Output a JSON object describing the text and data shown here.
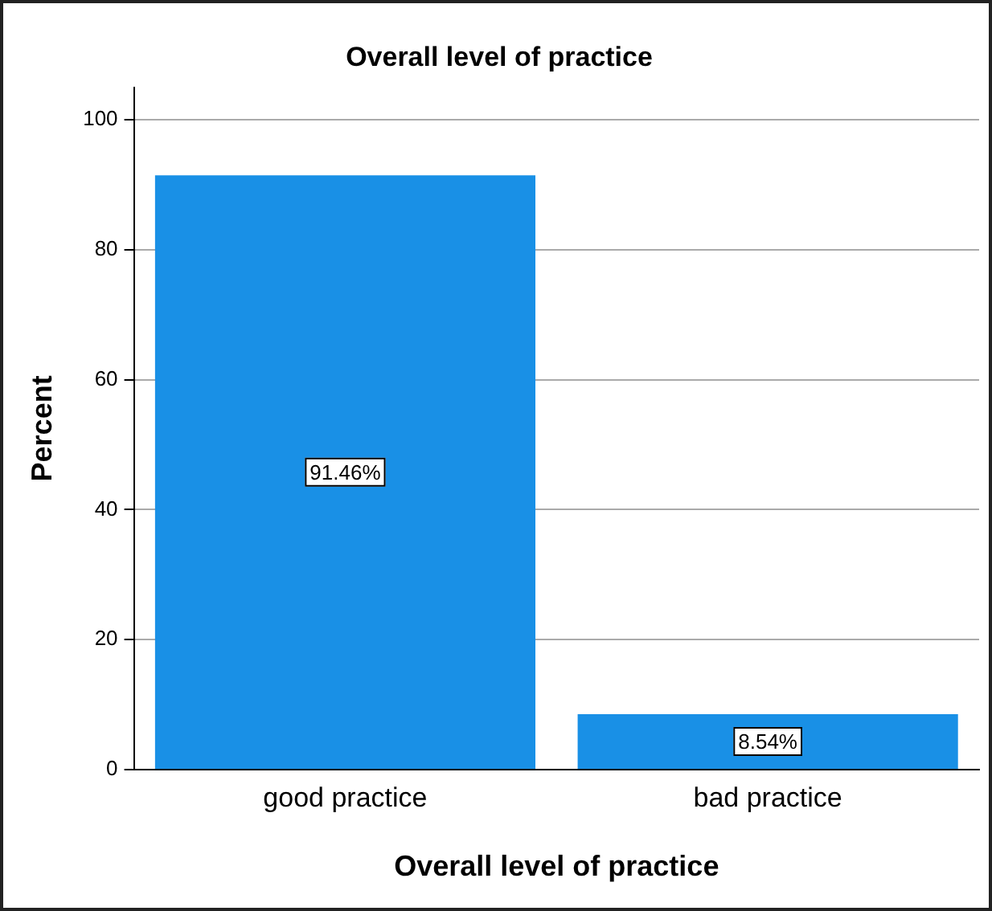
{
  "chart_data": {
    "type": "bar",
    "title": "Overall level of practice",
    "xlabel": "Overall level of practice",
    "ylabel": "Percent",
    "categories": [
      "good practice",
      "bad practice"
    ],
    "values": [
      91.46,
      8.54
    ],
    "color": "#1990e6",
    "value_labels": [
      "91.46%",
      "8.54%"
    ],
    "ylim": [
      0,
      105
    ],
    "yticks": [
      0,
      20,
      40,
      60,
      80,
      100
    ],
    "grid": "y",
    "legend": false
  }
}
